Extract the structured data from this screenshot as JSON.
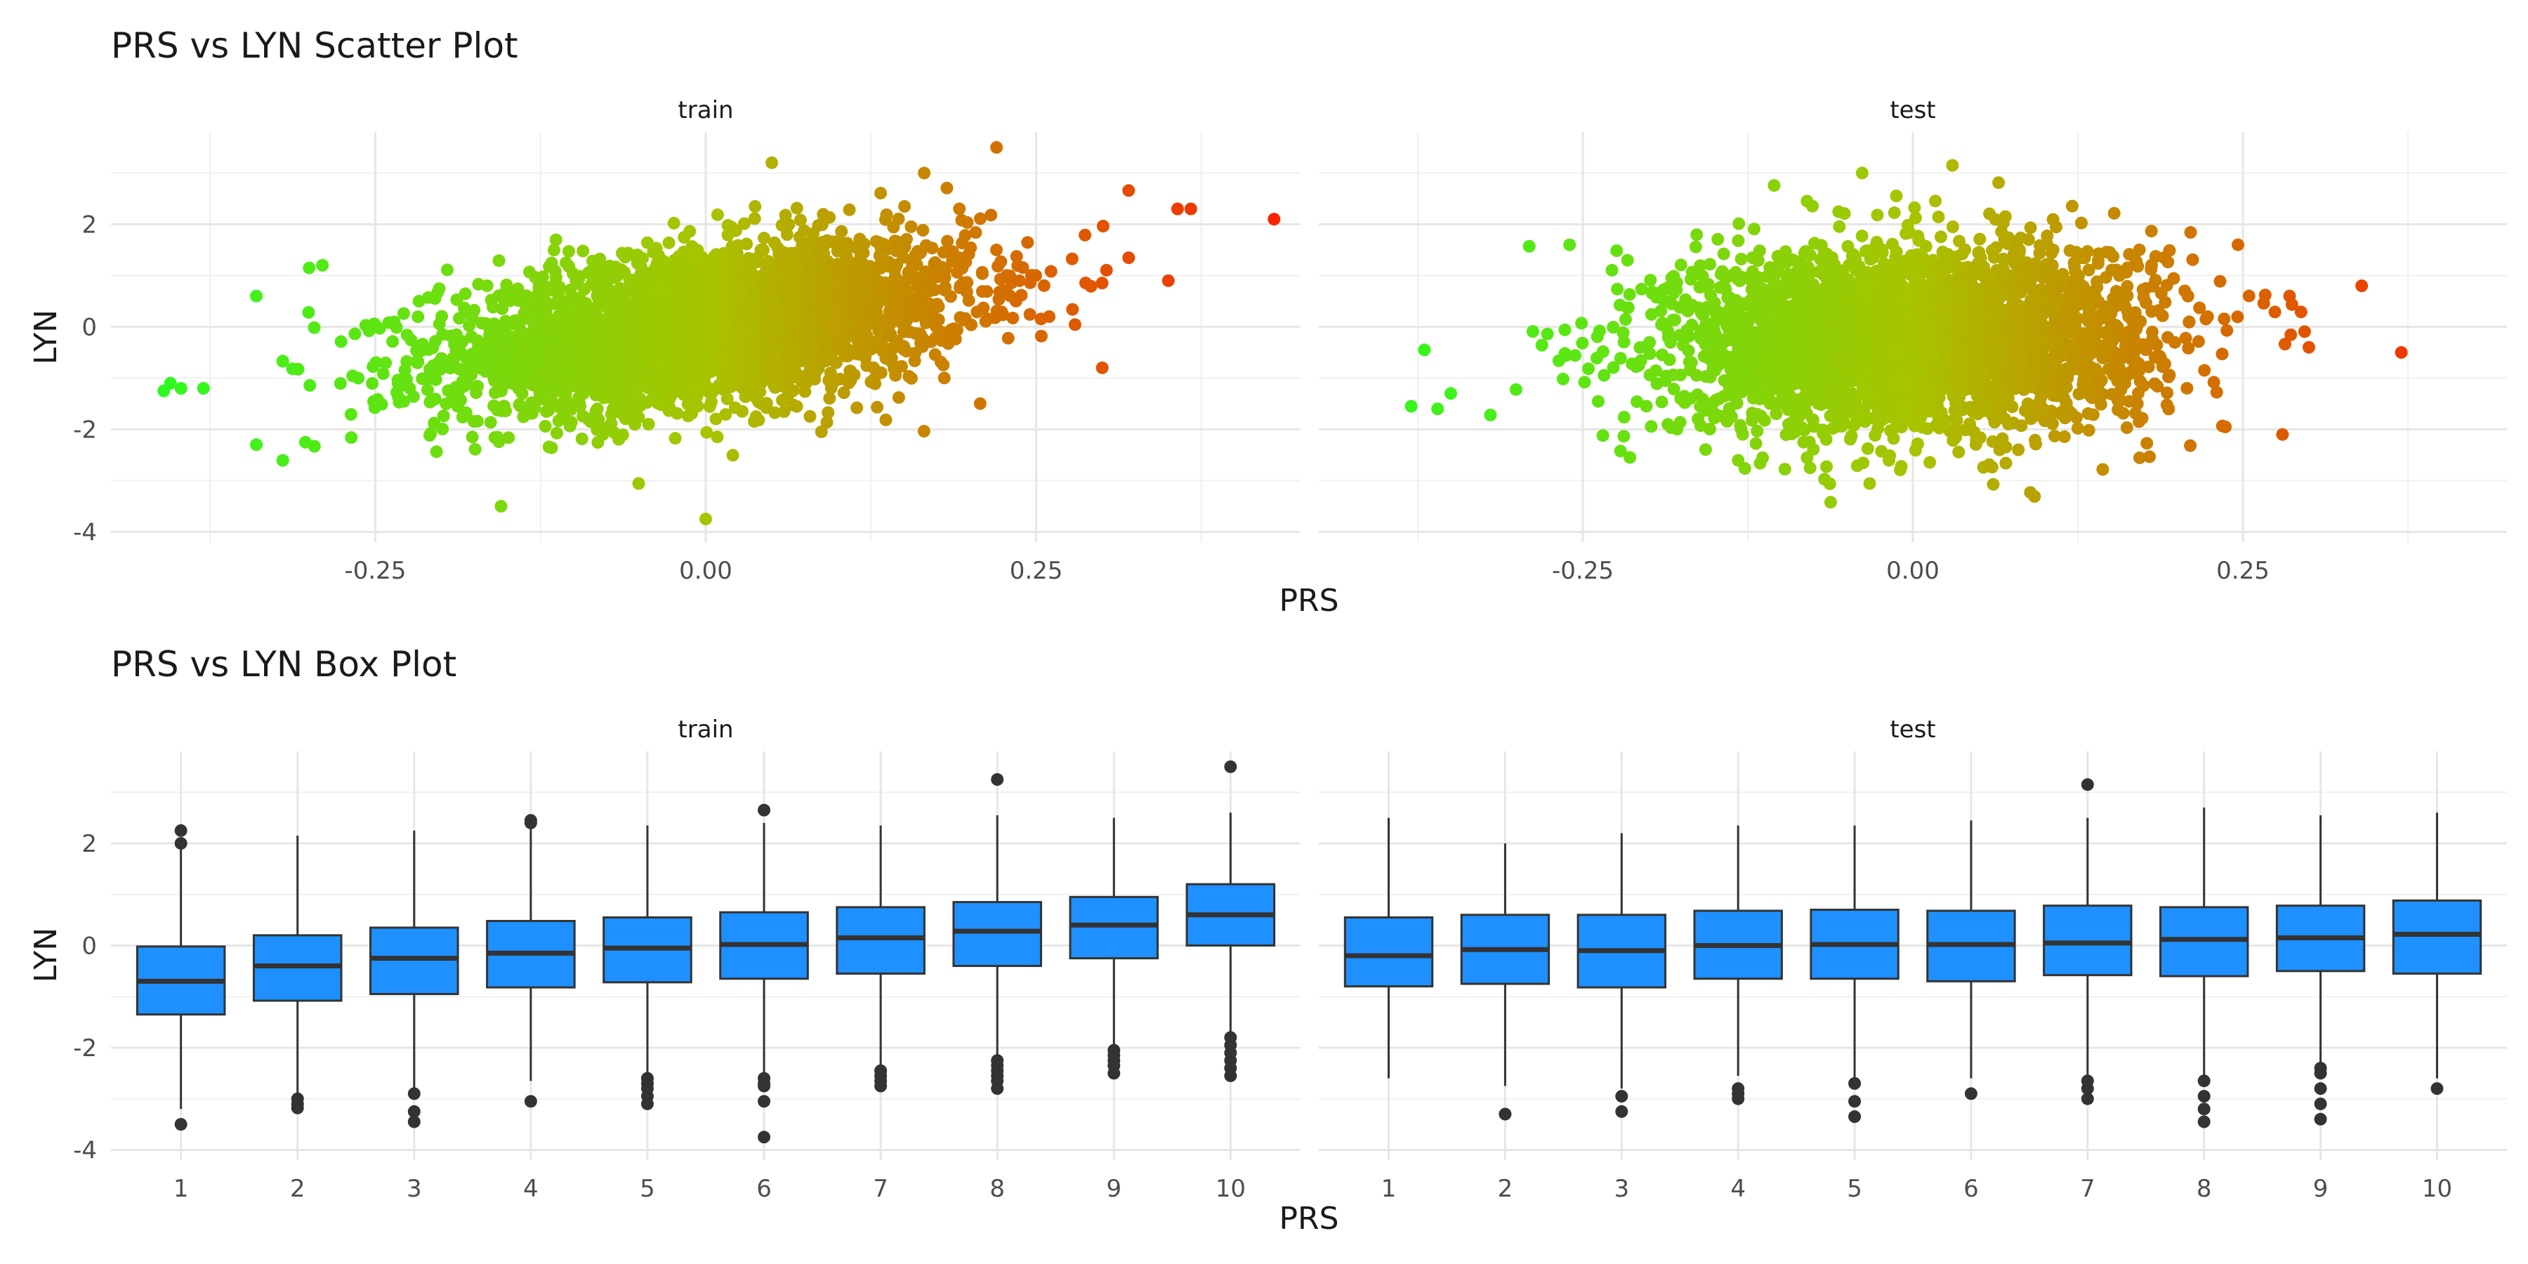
{
  "chart_data": [
    {
      "type": "scatter",
      "title": "PRS vs LYN Scatter Plot",
      "xlabel": "PRS",
      "ylabel": "LYN",
      "grid": true,
      "legend": "none",
      "color_scale": {
        "low": "#22ff22",
        "mid": "#a8c400",
        "high": "#ff1a00"
      },
      "xlim": [
        -0.45,
        0.45
      ],
      "ylim": [
        -4.2,
        3.8
      ],
      "x_ticks": [
        {
          "value": -0.25,
          "label": "-0.25"
        },
        {
          "value": 0.0,
          "label": "0.00"
        },
        {
          "value": 0.25,
          "label": "0.25"
        }
      ],
      "y_ticks": [
        {
          "value": -4,
          "label": "-4"
        },
        {
          "value": -2,
          "label": "-2"
        },
        {
          "value": 0,
          "label": "0"
        },
        {
          "value": 2,
          "label": "2"
        }
      ],
      "panels": [
        {
          "label": "train",
          "cloud": {
            "x_mean": 0.0,
            "x_sd": 0.1,
            "y_intercept": 0.0,
            "y_slope": 3.2,
            "y_noise_sd": 0.75
          },
          "outliers": [
            {
              "x": 0.43,
              "y": 2.1
            },
            {
              "x": 0.367,
              "y": 2.3
            },
            {
              "x": 0.357,
              "y": 2.3
            },
            {
              "x": 0.35,
              "y": 0.9
            },
            {
              "x": 0.22,
              "y": 3.5
            },
            {
              "x": 0.05,
              "y": 3.2
            },
            {
              "x": 0.0,
              "y": -3.75
            },
            {
              "x": -0.34,
              "y": 0.6
            },
            {
              "x": -0.397,
              "y": -1.2
            },
            {
              "x": -0.405,
              "y": -1.1
            },
            {
              "x": -0.41,
              "y": -1.25
            },
            {
              "x": -0.38,
              "y": -1.2
            },
            {
              "x": -0.34,
              "y": -2.3
            },
            {
              "x": -0.3,
              "y": 1.15
            },
            {
              "x": -0.29,
              "y": 1.2
            },
            {
              "x": 0.3,
              "y": -0.8
            }
          ]
        },
        {
          "label": "test",
          "cloud": {
            "x_mean": 0.0,
            "x_sd": 0.09,
            "y_intercept": -0.2,
            "y_slope": 0.6,
            "y_noise_sd": 0.9
          },
          "outliers": [
            {
              "x": 0.37,
              "y": -0.5
            },
            {
              "x": 0.34,
              "y": 0.8
            },
            {
              "x": 0.3,
              "y": -0.4
            },
            {
              "x": 0.03,
              "y": 3.15
            },
            {
              "x": -0.37,
              "y": -0.45
            },
            {
              "x": -0.38,
              "y": -1.55
            },
            {
              "x": -0.36,
              "y": -1.6
            },
            {
              "x": -0.35,
              "y": -1.3
            },
            {
              "x": -0.26,
              "y": 1.6
            },
            {
              "x": 0.28,
              "y": -2.1
            }
          ]
        }
      ]
    },
    {
      "type": "box",
      "title": "PRS vs LYN Box Plot",
      "xlabel": "PRS",
      "ylabel": "LYN",
      "grid": true,
      "legend": "none",
      "box_fill": "#1e90ff",
      "box_stroke": "#333333",
      "categories": [
        "1",
        "2",
        "3",
        "4",
        "5",
        "6",
        "7",
        "8",
        "9",
        "10"
      ],
      "ylim": [
        -4.2,
        3.8
      ],
      "y_ticks": [
        {
          "value": -4,
          "label": "-4"
        },
        {
          "value": -2,
          "label": "-2"
        },
        {
          "value": 0,
          "label": "0"
        },
        {
          "value": 2,
          "label": "2"
        }
      ],
      "panels": [
        {
          "label": "train",
          "boxes": [
            {
              "q1": -1.35,
              "median": -0.7,
              "q3": -0.02,
              "whisker_low": -3.2,
              "whisker_high": 1.95,
              "outliers": [
                2.25,
                2.0,
                -3.5
              ]
            },
            {
              "q1": -1.08,
              "median": -0.4,
              "q3": 0.2,
              "whisker_low": -2.9,
              "whisker_high": 2.15,
              "outliers": [
                -3.0,
                -3.1,
                -3.18
              ]
            },
            {
              "q1": -0.95,
              "median": -0.25,
              "q3": 0.35,
              "whisker_low": -2.85,
              "whisker_high": 2.25,
              "outliers": [
                -2.9,
                -3.25,
                -3.45
              ]
            },
            {
              "q1": -0.82,
              "median": -0.15,
              "q3": 0.48,
              "whisker_low": -2.65,
              "whisker_high": 2.35,
              "outliers": [
                2.45,
                2.4,
                -3.05
              ]
            },
            {
              "q1": -0.72,
              "median": -0.05,
              "q3": 0.55,
              "whisker_low": -2.5,
              "whisker_high": 2.35,
              "outliers": [
                -2.6,
                -2.7,
                -2.8,
                -2.95,
                -3.1
              ]
            },
            {
              "q1": -0.65,
              "median": 0.02,
              "q3": 0.65,
              "whisker_low": -2.55,
              "whisker_high": 2.4,
              "outliers": [
                2.65,
                -2.6,
                -2.7,
                -2.75,
                -3.05,
                -3.75
              ]
            },
            {
              "q1": -0.55,
              "median": 0.15,
              "q3": 0.75,
              "whisker_low": -2.4,
              "whisker_high": 2.35,
              "outliers": [
                -2.45,
                -2.55,
                -2.65,
                -2.75
              ]
            },
            {
              "q1": -0.4,
              "median": 0.28,
              "q3": 0.85,
              "whisker_low": -2.2,
              "whisker_high": 2.55,
              "outliers": [
                3.25,
                -2.25,
                -2.35,
                -2.45,
                -2.55,
                -2.65,
                -2.8
              ]
            },
            {
              "q1": -0.25,
              "median": 0.4,
              "q3": 0.95,
              "whisker_low": -2.0,
              "whisker_high": 2.5,
              "outliers": [
                -2.05,
                -2.15,
                -2.25,
                -2.35,
                -2.5
              ]
            },
            {
              "q1": 0.0,
              "median": 0.6,
              "q3": 1.2,
              "whisker_low": -1.75,
              "whisker_high": 2.6,
              "outliers": [
                3.5,
                -1.8,
                -1.95,
                -2.1,
                -2.25,
                -2.4,
                -2.55
              ]
            }
          ]
        },
        {
          "label": "test",
          "boxes": [
            {
              "q1": -0.8,
              "median": -0.2,
              "q3": 0.55,
              "whisker_low": -2.6,
              "whisker_high": 2.5,
              "outliers": []
            },
            {
              "q1": -0.75,
              "median": -0.08,
              "q3": 0.6,
              "whisker_low": -2.75,
              "whisker_high": 2.0,
              "outliers": [
                -3.3
              ]
            },
            {
              "q1": -0.82,
              "median": -0.1,
              "q3": 0.6,
              "whisker_low": -2.8,
              "whisker_high": 2.2,
              "outliers": [
                -2.95,
                -3.25
              ]
            },
            {
              "q1": -0.65,
              "median": 0.0,
              "q3": 0.68,
              "whisker_low": -2.55,
              "whisker_high": 2.35,
              "outliers": [
                -2.8,
                -2.9,
                -3.0
              ]
            },
            {
              "q1": -0.65,
              "median": 0.02,
              "q3": 0.7,
              "whisker_low": -2.6,
              "whisker_high": 2.35,
              "outliers": [
                -2.7,
                -3.05,
                -3.35
              ]
            },
            {
              "q1": -0.7,
              "median": 0.02,
              "q3": 0.68,
              "whisker_low": -2.6,
              "whisker_high": 2.45,
              "outliers": [
                -2.9
              ]
            },
            {
              "q1": -0.58,
              "median": 0.05,
              "q3": 0.78,
              "whisker_low": -2.55,
              "whisker_high": 2.5,
              "outliers": [
                3.15,
                -2.65,
                -2.8,
                -3.0
              ]
            },
            {
              "q1": -0.6,
              "median": 0.12,
              "q3": 0.75,
              "whisker_low": -2.6,
              "whisker_high": 2.7,
              "outliers": [
                -2.65,
                -2.95,
                -3.2,
                -3.45
              ]
            },
            {
              "q1": -0.5,
              "median": 0.15,
              "q3": 0.78,
              "whisker_low": -2.35,
              "whisker_high": 2.55,
              "outliers": [
                -2.4,
                -2.5,
                -2.8,
                -3.1,
                -3.4
              ]
            },
            {
              "q1": -0.55,
              "median": 0.22,
              "q3": 0.88,
              "whisker_low": -2.6,
              "whisker_high": 2.6,
              "outliers": [
                -2.8
              ]
            }
          ]
        }
      ]
    }
  ]
}
